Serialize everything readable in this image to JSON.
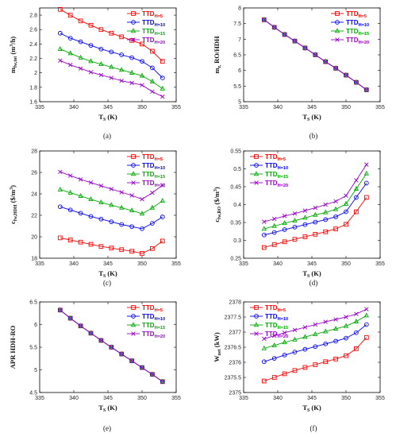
{
  "chart_data": [
    {
      "type": "line",
      "panel_label": "(a)",
      "xlabel": "T_S (K)",
      "ylabel": "m_fw,tot (m^3/h)",
      "xlim": [
        335,
        355
      ],
      "ylim": [
        1.6,
        2.9
      ],
      "xticks": [
        335,
        340,
        345,
        350,
        355
      ],
      "yticks": [
        1.6,
        1.8,
        2,
        2.2,
        2.4,
        2.6,
        2.8
      ],
      "grid": false,
      "legend_position": "top-right",
      "x": [
        338,
        339.5,
        341,
        342.5,
        344,
        345.5,
        347,
        348.5,
        350,
        351.5,
        353
      ],
      "series": [
        {
          "name": "TTD_H=5",
          "color": "#ff0000",
          "marker": "square",
          "values": [
            2.88,
            2.8,
            2.72,
            2.66,
            2.6,
            2.55,
            2.5,
            2.45,
            2.4,
            2.3,
            2.16
          ]
        },
        {
          "name": "TTD_H=10",
          "color": "#0000ff",
          "marker": "circle",
          "values": [
            2.55,
            2.48,
            2.43,
            2.38,
            2.33,
            2.29,
            2.25,
            2.21,
            2.16,
            2.07,
            1.93
          ]
        },
        {
          "name": "TTD_H=15",
          "color": "#00aa00",
          "marker": "triangle",
          "values": [
            2.33,
            2.27,
            2.21,
            2.16,
            2.12,
            2.08,
            2.04,
            2.0,
            1.96,
            1.88,
            1.78
          ]
        },
        {
          "name": "TTD_H=20",
          "color": "#9900cc",
          "marker": "x",
          "values": [
            2.17,
            2.11,
            2.06,
            2.01,
            1.97,
            1.93,
            1.89,
            1.86,
            1.83,
            1.74,
            1.67
          ]
        }
      ]
    },
    {
      "type": "line",
      "panel_label": "(b)",
      "xlabel": "T_S (K)",
      "ylabel": "m_r, RO/HDH",
      "xlim": [
        335,
        355
      ],
      "ylim": [
        5,
        8
      ],
      "xticks": [
        335,
        340,
        345,
        350,
        355
      ],
      "yticks": [
        5,
        5.5,
        6,
        6.5,
        7,
        7.5,
        8
      ],
      "grid": false,
      "legend_position": "top-right",
      "x": [
        338,
        339.5,
        341,
        342.5,
        344,
        345.5,
        347,
        348.5,
        350,
        351.5,
        353
      ],
      "series": [
        {
          "name": "TTD_H=5",
          "color": "#ff0000",
          "marker": "square",
          "values": [
            7.62,
            7.38,
            7.15,
            6.94,
            6.72,
            6.5,
            6.28,
            6.07,
            5.85,
            5.62,
            5.38
          ]
        },
        {
          "name": "TTD_H=10",
          "color": "#0000ff",
          "marker": "circle",
          "values": [
            7.62,
            7.38,
            7.15,
            6.94,
            6.72,
            6.5,
            6.28,
            6.07,
            5.85,
            5.62,
            5.38
          ]
        },
        {
          "name": "TTD_H=15",
          "color": "#00aa00",
          "marker": "triangle",
          "values": [
            7.62,
            7.38,
            7.15,
            6.94,
            6.72,
            6.5,
            6.28,
            6.07,
            5.85,
            5.62,
            5.38
          ]
        },
        {
          "name": "TTD_H=20",
          "color": "#9900cc",
          "marker": "x",
          "values": [
            7.62,
            7.38,
            7.15,
            6.94,
            6.72,
            6.5,
            6.28,
            6.07,
            5.85,
            5.62,
            5.38
          ]
        }
      ]
    },
    {
      "type": "line",
      "panel_label": "(c)",
      "xlabel": "T_S (K)",
      "ylabel": "c_fw,HDH ($/m^3)",
      "xlim": [
        335,
        355
      ],
      "ylim": [
        18,
        28
      ],
      "xticks": [
        335,
        340,
        345,
        350,
        355
      ],
      "yticks": [
        18,
        20,
        22,
        24,
        26,
        28
      ],
      "grid": false,
      "legend_position": "top-right",
      "x": [
        338,
        339.5,
        341,
        342.5,
        344,
        345.5,
        347,
        348.5,
        350,
        351.5,
        353
      ],
      "series": [
        {
          "name": "TTD_H=5",
          "color": "#ff0000",
          "marker": "square",
          "values": [
            19.9,
            19.7,
            19.5,
            19.3,
            19.1,
            18.95,
            18.8,
            18.65,
            18.45,
            18.9,
            19.6
          ]
        },
        {
          "name": "TTD_H=10",
          "color": "#0000ff",
          "marker": "circle",
          "values": [
            22.8,
            22.5,
            22.2,
            21.9,
            21.65,
            21.4,
            21.15,
            20.95,
            20.75,
            21.25,
            21.85
          ]
        },
        {
          "name": "TTD_H=15",
          "color": "#00aa00",
          "marker": "triangle",
          "values": [
            24.4,
            24.1,
            23.8,
            23.5,
            23.2,
            22.95,
            22.7,
            22.45,
            22.15,
            22.7,
            23.35
          ]
        },
        {
          "name": "TTD_H=20",
          "color": "#9900cc",
          "marker": "x",
          "values": [
            26.05,
            25.7,
            25.35,
            25.05,
            24.75,
            24.45,
            24.15,
            23.85,
            23.5,
            24.1,
            24.8
          ]
        }
      ]
    },
    {
      "type": "line",
      "panel_label": "(d)",
      "xlabel": "T_S (K)",
      "ylabel": "c_fw,RO ($/m^3)",
      "xlim": [
        335,
        355
      ],
      "ylim": [
        0.25,
        0.55
      ],
      "xticks": [
        335,
        340,
        345,
        350,
        355
      ],
      "yticks": [
        0.25,
        0.3,
        0.35,
        0.4,
        0.45,
        0.5,
        0.55
      ],
      "grid": false,
      "legend_position": "top-left",
      "x": [
        338,
        339.5,
        341,
        342.5,
        344,
        345.5,
        347,
        348.5,
        350,
        351.5,
        353
      ],
      "series": [
        {
          "name": "TTD_H=5",
          "color": "#ff0000",
          "marker": "square",
          "values": [
            0.28,
            0.288,
            0.296,
            0.303,
            0.31,
            0.317,
            0.324,
            0.332,
            0.345,
            0.38,
            0.42
          ]
        },
        {
          "name": "TTD_H=10",
          "color": "#0000ff",
          "marker": "circle",
          "values": [
            0.315,
            0.322,
            0.33,
            0.337,
            0.344,
            0.351,
            0.358,
            0.366,
            0.38,
            0.42,
            0.46
          ]
        },
        {
          "name": "TTD_H=15",
          "color": "#00aa00",
          "marker": "triangle",
          "values": [
            0.332,
            0.34,
            0.348,
            0.355,
            0.363,
            0.371,
            0.378,
            0.387,
            0.402,
            0.444,
            0.487
          ]
        },
        {
          "name": "TTD_H=20",
          "color": "#9900cc",
          "marker": "x",
          "values": [
            0.352,
            0.36,
            0.368,
            0.375,
            0.383,
            0.391,
            0.4,
            0.409,
            0.425,
            0.468,
            0.512
          ]
        }
      ]
    },
    {
      "type": "line",
      "panel_label": "(e)",
      "xlabel": "T_S (K)",
      "ylabel": "APR HDH-RO",
      "xlim": [
        335,
        355
      ],
      "ylim": [
        4.5,
        6.5
      ],
      "xticks": [
        335,
        340,
        345,
        350,
        355
      ],
      "yticks": [
        4.5,
        5,
        5.5,
        6,
        6.5
      ],
      "grid": false,
      "legend_position": "top-right",
      "x": [
        338,
        339.5,
        341,
        342.5,
        344,
        345.5,
        347,
        348.5,
        350,
        351.5,
        353
      ],
      "series": [
        {
          "name": "TTD_H=5",
          "color": "#ff0000",
          "marker": "square",
          "values": [
            6.32,
            6.14,
            5.97,
            5.81,
            5.65,
            5.5,
            5.35,
            5.2,
            5.05,
            4.9,
            4.74
          ]
        },
        {
          "name": "TTD_H=10",
          "color": "#0000ff",
          "marker": "circle",
          "values": [
            6.32,
            6.14,
            5.97,
            5.81,
            5.65,
            5.5,
            5.35,
            5.2,
            5.05,
            4.9,
            4.74
          ]
        },
        {
          "name": "TTD_H=15",
          "color": "#00aa00",
          "marker": "triangle",
          "values": [
            6.32,
            6.14,
            5.97,
            5.81,
            5.65,
            5.5,
            5.35,
            5.2,
            5.05,
            4.9,
            4.74
          ]
        },
        {
          "name": "TTD_H=20",
          "color": "#9900cc",
          "marker": "x",
          "values": [
            6.32,
            6.14,
            5.97,
            5.81,
            5.65,
            5.5,
            5.35,
            5.2,
            5.05,
            4.9,
            4.74
          ]
        }
      ]
    },
    {
      "type": "line",
      "panel_label": "(f)",
      "xlabel": "T_S (K)",
      "ylabel": "W_net (kW)",
      "xlim": [
        335,
        355
      ],
      "ylim": [
        2375,
        2378
      ],
      "xticks": [
        335,
        340,
        345,
        350,
        355
      ],
      "yticks": [
        2375,
        2375.5,
        2376,
        2376.5,
        2377,
        2377.5,
        2378
      ],
      "grid": false,
      "legend_position": "top-left",
      "x": [
        338,
        339.5,
        341,
        342.5,
        344,
        345.5,
        347,
        348.5,
        350,
        351.5,
        353
      ],
      "series": [
        {
          "name": "TTD_H=5",
          "color": "#ff0000",
          "marker": "square",
          "values": [
            2375.38,
            2375.5,
            2375.62,
            2375.73,
            2375.83,
            2375.92,
            2376.02,
            2376.11,
            2376.22,
            2376.45,
            2376.82
          ]
        },
        {
          "name": "TTD_H=10",
          "color": "#0000ff",
          "marker": "circle",
          "values": [
            2376.02,
            2376.13,
            2376.24,
            2376.34,
            2376.43,
            2376.52,
            2376.61,
            2376.7,
            2376.8,
            2376.98,
            2377.25
          ]
        },
        {
          "name": "TTD_H=15",
          "color": "#00aa00",
          "marker": "triangle",
          "values": [
            2376.46,
            2376.56,
            2376.66,
            2376.75,
            2376.84,
            2376.93,
            2377.02,
            2377.11,
            2377.2,
            2377.35,
            2377.55
          ]
        },
        {
          "name": "TTD_H=20",
          "color": "#9900cc",
          "marker": "x",
          "values": [
            2376.78,
            2376.88,
            2376.98,
            2377.07,
            2377.16,
            2377.25,
            2377.34,
            2377.42,
            2377.5,
            2377.6,
            2377.76
          ]
        }
      ]
    }
  ]
}
